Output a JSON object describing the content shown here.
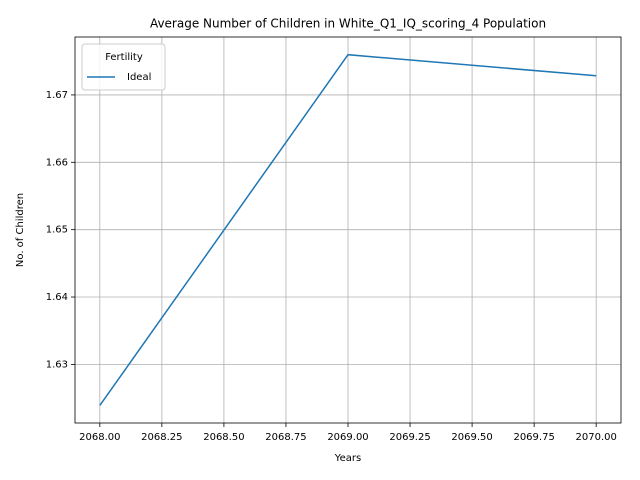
{
  "chart_data": {
    "type": "line",
    "title": "Average Number of Children in White_Q1_IQ_scoring_4 Population",
    "xlabel": "Years",
    "ylabel": "No. of Children",
    "x": [
      2068,
      2069,
      2070
    ],
    "series": [
      {
        "name": "Ideal",
        "color": "#1f77b4",
        "values": [
          1.6239,
          1.67597,
          1.67284
        ]
      }
    ],
    "xlim": [
      2067.9,
      2070.1
    ],
    "xticks": [
      {
        "value": 2068,
        "label": "2068.00"
      },
      {
        "value": 2068.25,
        "label": "2068.25"
      },
      {
        "value": 2068.5,
        "label": "2068.50"
      },
      {
        "value": 2068.75,
        "label": "2068.75"
      },
      {
        "value": 2069,
        "label": "2069.00"
      },
      {
        "value": 2069.25,
        "label": "2069.25"
      },
      {
        "value": 2069.5,
        "label": "2069.50"
      },
      {
        "value": 2069.75,
        "label": "2069.75"
      },
      {
        "value": 2070,
        "label": "2070.00"
      }
    ],
    "ylim": [
      1.6213,
      1.6786
    ],
    "yticks": [
      1.63,
      1.64,
      1.65,
      1.66,
      1.67
    ],
    "grid": true,
    "legend_title": "Fertility",
    "legend_position": "upper-left"
  }
}
